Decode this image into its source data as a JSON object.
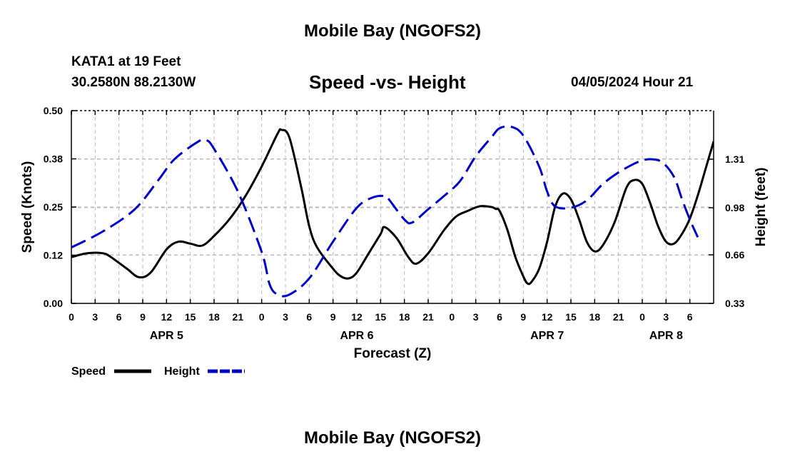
{
  "header": {
    "title": "Mobile Bay (NGOFS2)",
    "station": "KATA1 at 19 Feet",
    "coords": "30.2580N   88.2130W",
    "subtitle": "Speed -vs- Height",
    "datetime": "04/05/2024 Hour 21"
  },
  "footer": {
    "title": "Mobile Bay (NGOFS2)"
  },
  "chart_data": {
    "type": "line",
    "xlabel": "Forecast (Z)",
    "ylabel": "Speed (Knots)",
    "y2label": "Height (feet)",
    "x_unit": "hours from 00Z Apr 5",
    "xlim": [
      0,
      78
    ],
    "ylim": [
      0,
      0.5
    ],
    "y2lim": [
      0.33,
      1.64
    ],
    "x_tick_labels": [
      "0",
      "3",
      "6",
      "9",
      "12",
      "15",
      "18",
      "21",
      "0",
      "3",
      "6",
      "9",
      "12",
      "15",
      "18",
      "21",
      "0",
      "3",
      "6",
      "9",
      "12",
      "15",
      "18",
      "21",
      "0",
      "3",
      "6"
    ],
    "day_labels": [
      {
        "x": 12,
        "label": "APR 5"
      },
      {
        "x": 36,
        "label": "APR 6"
      },
      {
        "x": 60,
        "label": "APR 7"
      },
      {
        "x": 75,
        "label": "APR 8"
      }
    ],
    "y_tick_labels": [
      "0.00",
      "0.12",
      "0.25",
      "0.38",
      "0.50"
    ],
    "y_tick_values": [
      0,
      0.125,
      0.25,
      0.375,
      0.5
    ],
    "y2_tick_labels": [
      "0.33",
      "0.66",
      "0.98",
      "1.31"
    ],
    "y2_tick_values": [
      0.33,
      0.66,
      0.98,
      1.31
    ],
    "grid": true,
    "legend_position": "bottom-left",
    "series": [
      {
        "name": "Speed",
        "axis": "left",
        "color": "#000000",
        "dash": "solid",
        "points": [
          [
            0,
            0.12
          ],
          [
            2,
            0.13
          ],
          [
            4,
            0.13
          ],
          [
            5,
            0.12
          ],
          [
            7,
            0.09
          ],
          [
            8.5,
            0.068
          ],
          [
            10,
            0.08
          ],
          [
            12,
            0.14
          ],
          [
            13.5,
            0.16
          ],
          [
            15,
            0.155
          ],
          [
            16.5,
            0.15
          ],
          [
            18,
            0.175
          ],
          [
            20,
            0.22
          ],
          [
            22,
            0.28
          ],
          [
            24,
            0.355
          ],
          [
            26,
            0.44
          ],
          [
            26.5,
            0.45
          ],
          [
            27.5,
            0.43
          ],
          [
            29,
            0.3
          ],
          [
            30,
            0.2
          ],
          [
            31,
            0.145
          ],
          [
            33,
            0.09
          ],
          [
            34,
            0.07
          ],
          [
            35,
            0.065
          ],
          [
            36,
            0.08
          ],
          [
            37.5,
            0.13
          ],
          [
            39,
            0.18
          ],
          [
            39.5,
            0.198
          ],
          [
            41,
            0.17
          ],
          [
            42.5,
            0.12
          ],
          [
            43.5,
            0.103
          ],
          [
            45,
            0.13
          ],
          [
            47,
            0.19
          ],
          [
            48.5,
            0.225
          ],
          [
            50,
            0.24
          ],
          [
            51.5,
            0.252
          ],
          [
            53,
            0.25
          ],
          [
            53.5,
            0.245
          ],
          [
            54,
            0.24
          ],
          [
            55,
            0.19
          ],
          [
            56,
            0.12
          ],
          [
            57,
            0.07
          ],
          [
            57.5,
            0.052
          ],
          [
            58,
            0.055
          ],
          [
            59,
            0.09
          ],
          [
            60,
            0.16
          ],
          [
            61,
            0.25
          ],
          [
            62,
            0.285
          ],
          [
            63,
            0.27
          ],
          [
            64,
            0.22
          ],
          [
            65,
            0.16
          ],
          [
            66,
            0.135
          ],
          [
            67,
            0.15
          ],
          [
            68.5,
            0.21
          ],
          [
            70,
            0.3
          ],
          [
            71,
            0.32
          ],
          [
            72,
            0.31
          ],
          [
            73,
            0.26
          ],
          [
            74,
            0.2
          ],
          [
            75,
            0.16
          ],
          [
            76,
            0.155
          ],
          [
            77,
            0.18
          ],
          [
            78,
            0.22
          ],
          [
            79,
            0.28
          ],
          [
            80,
            0.35
          ],
          [
            81,
            0.42
          ]
        ]
      },
      {
        "name": "Height",
        "axis": "right",
        "color": "#0000cc",
        "dash": "dashed",
        "points": [
          [
            0,
            0.71
          ],
          [
            4,
            0.82
          ],
          [
            8,
            0.97
          ],
          [
            11,
            1.17
          ],
          [
            13,
            1.31
          ],
          [
            16,
            1.43
          ],
          [
            17,
            1.44
          ],
          [
            18,
            1.38
          ],
          [
            21,
            1.09
          ],
          [
            24,
            0.68
          ],
          [
            25,
            0.46
          ],
          [
            26,
            0.39
          ],
          [
            27.5,
            0.39
          ],
          [
            30,
            0.5
          ],
          [
            33,
            0.75
          ],
          [
            36,
            0.98
          ],
          [
            38,
            1.05
          ],
          [
            39.5,
            1.06
          ],
          [
            40,
            1.04
          ],
          [
            42,
            0.9
          ],
          [
            43,
            0.88
          ],
          [
            45,
            0.97
          ],
          [
            47,
            1.06
          ],
          [
            49,
            1.16
          ],
          [
            51,
            1.33
          ],
          [
            53,
            1.46
          ],
          [
            54,
            1.52
          ],
          [
            55.5,
            1.53
          ],
          [
            57,
            1.47
          ],
          [
            59,
            1.26
          ],
          [
            60,
            1.09
          ],
          [
            61,
            0.99
          ],
          [
            63,
            0.98
          ],
          [
            65,
            1.03
          ],
          [
            67,
            1.14
          ],
          [
            69,
            1.22
          ],
          [
            71,
            1.28
          ],
          [
            72,
            1.3
          ],
          [
            73,
            1.31
          ],
          [
            74.5,
            1.29
          ],
          [
            76,
            1.19
          ],
          [
            77,
            1.04
          ],
          [
            78,
            0.9
          ],
          [
            79,
            0.78
          ]
        ]
      }
    ]
  }
}
